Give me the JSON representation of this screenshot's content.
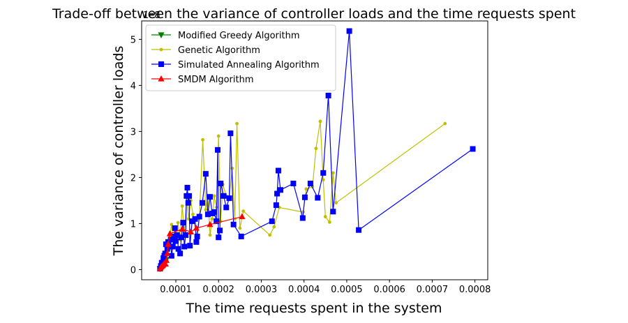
{
  "chart_data": {
    "type": "line",
    "title": "Trade-off between the variance of controller loads and the time requests spent",
    "xlabel": "The time requests spent in the system",
    "ylabel": "The variance of controller loads",
    "y_offset_label": "1e8",
    "xlim": [
      2e-05,
      0.00083
    ],
    "ylim": [
      -0.22,
      5.4
    ],
    "x_ticks": [
      0.0001,
      0.0002,
      0.0003,
      0.0004,
      0.0005,
      0.0006,
      0.0007,
      0.0008
    ],
    "x_tick_labels": [
      "0.0001",
      "0.0002",
      "0.0003",
      "0.0004",
      "0.0005",
      "0.0006",
      "0.0007",
      "0.0008"
    ],
    "y_ticks": [
      0,
      1,
      2,
      3,
      4,
      5
    ],
    "y_tick_labels": [
      "0",
      "1",
      "2",
      "3",
      "4",
      "5"
    ],
    "legend_position": "top-left",
    "series": [
      {
        "name": "Modified Greedy Algorithm",
        "color": "#008000",
        "marker": "triangle-down",
        "points": [
          [
            6.3e-05,
            0.02
          ],
          [
            6.6e-05,
            0.05
          ],
          [
            6.8e-05,
            0.08
          ],
          [
            7e-05,
            0.12
          ],
          [
            7.2e-05,
            0.15
          ],
          [
            7.5e-05,
            0.18
          ],
          [
            7.8e-05,
            0.22
          ]
        ]
      },
      {
        "name": "Genetic Algorithm",
        "color": "#bfbf00",
        "marker": "dot",
        "points": [
          [
            6.3e-05,
            0.05
          ],
          [
            6.6e-05,
            0.1
          ],
          [
            7e-05,
            0.2
          ],
          [
            7.4e-05,
            0.35
          ],
          [
            7.8e-05,
            0.5
          ],
          [
            8.2e-05,
            0.62
          ],
          [
            8.6e-05,
            0.72
          ],
          [
            9e-05,
            0.98
          ],
          [
            9.5e-05,
            0.55
          ],
          [
            0.0001,
            0.7
          ],
          [
            0.000105,
            1.02
          ],
          [
            0.00011,
            0.65
          ],
          [
            0.000115,
            1.38
          ],
          [
            0.00012,
            0.8
          ],
          [
            0.000125,
            1.6
          ],
          [
            0.00013,
            1.1
          ],
          [
            0.000135,
            1.5
          ],
          [
            0.00014,
            1.2
          ],
          [
            0.000148,
            0.75
          ],
          [
            0.000155,
            1.12
          ],
          [
            0.000163,
            2.82
          ],
          [
            0.00017,
            1.3
          ],
          [
            0.000175,
            1.6
          ],
          [
            0.00018,
            0.75
          ],
          [
            0.000185,
            1.1
          ],
          [
            0.00019,
            1.6
          ],
          [
            0.000195,
            1.35
          ],
          [
            0.0002,
            2.9
          ],
          [
            0.000205,
            1.05
          ],
          [
            0.00021,
            1.85
          ],
          [
            0.000218,
            1.6
          ],
          [
            0.000225,
            1.55
          ],
          [
            0.000232,
            2.2
          ],
          [
            0.000238,
            1.1
          ],
          [
            0.000243,
            3.17
          ],
          [
            0.00025,
            0.9
          ],
          [
            0.000258,
            1.27
          ],
          [
            0.00032,
            0.75
          ],
          [
            0.00033,
            0.93
          ],
          [
            0.000342,
            1.35
          ],
          [
            0.000398,
            1.25
          ],
          [
            0.000405,
            1.75
          ],
          [
            0.00042,
            1.8
          ],
          [
            0.000428,
            2.63
          ],
          [
            0.000438,
            3.22
          ],
          [
            0.000445,
            1.95
          ],
          [
            0.00045,
            1.15
          ],
          [
            0.00046,
            1.03
          ],
          [
            0.000468,
            2.1
          ],
          [
            0.000475,
            1.45
          ],
          [
            0.00073,
            3.17
          ]
        ]
      },
      {
        "name": "Simulated Annealing Algorithm",
        "color": "#0000ff",
        "marker": "square",
        "points": [
          [
            6.3e-05,
            0.02
          ],
          [
            6.5e-05,
            0.08
          ],
          [
            6.7e-05,
            0.15
          ],
          [
            6.9e-05,
            0.1
          ],
          [
            7.1e-05,
            0.25
          ],
          [
            7.3e-05,
            0.3
          ],
          [
            7.5e-05,
            0.35
          ],
          [
            7.7e-05,
            0.55
          ],
          [
            8e-05,
            0.45
          ],
          [
            8.2e-05,
            0.6
          ],
          [
            8.5e-05,
            0.5
          ],
          [
            8.8e-05,
            0.65
          ],
          [
            9e-05,
            0.3
          ],
          [
            9.3e-05,
            0.5
          ],
          [
            9.6e-05,
            0.72
          ],
          [
            9.8e-05,
            0.9
          ],
          [
            0.0001,
            0.62
          ],
          [
            0.000103,
            0.75
          ],
          [
            0.000106,
            0.45
          ],
          [
            0.00011,
            0.35
          ],
          [
            0.000113,
            0.7
          ],
          [
            0.000117,
            1.02
          ],
          [
            0.00012,
            0.5
          ],
          [
            0.000123,
            0.75
          ],
          [
            0.000125,
            1.6
          ],
          [
            0.000127,
            1.78
          ],
          [
            0.000129,
            1.45
          ],
          [
            0.000131,
            1.6
          ],
          [
            0.000133,
            0.52
          ],
          [
            0.000138,
            1.05
          ],
          [
            0.000145,
            1.1
          ],
          [
            0.000148,
            0.6
          ],
          [
            0.00015,
            0.72
          ],
          [
            0.000155,
            1.15
          ],
          [
            0.000162,
            1.45
          ],
          [
            0.00017,
            2.08
          ],
          [
            0.000175,
            1.2
          ],
          [
            0.00018,
            1.58
          ],
          [
            0.000185,
            1.22
          ],
          [
            0.00019,
            1.25
          ],
          [
            0.000195,
            1.05
          ],
          [
            0.000198,
            2.6
          ],
          [
            0.0002,
            0.7
          ],
          [
            0.000203,
            0.85
          ],
          [
            0.000205,
            1.87
          ],
          [
            0.000212,
            1.6
          ],
          [
            0.000218,
            1.35
          ],
          [
            0.000225,
            1.55
          ],
          [
            0.000228,
            2.96
          ],
          [
            0.000235,
            0.98
          ],
          [
            0.000253,
            0.72
          ],
          [
            0.000325,
            1.05
          ],
          [
            0.000335,
            1.4
          ],
          [
            0.000337,
            1.65
          ],
          [
            0.00034,
            2.15
          ],
          [
            0.000345,
            1.73
          ],
          [
            0.000375,
            1.87
          ],
          [
            0.000397,
            1.12
          ],
          [
            0.000402,
            1.57
          ],
          [
            0.000415,
            1.87
          ],
          [
            0.000432,
            1.56
          ],
          [
            0.000445,
            2.1
          ],
          [
            0.000457,
            3.78
          ],
          [
            0.000468,
            1.26
          ],
          [
            0.000506,
            5.18
          ],
          [
            0.000528,
            0.86
          ],
          [
            0.000795,
            2.62
          ]
        ]
      },
      {
        "name": "SMDM Algorithm",
        "color": "#ff0000",
        "marker": "triangle-up",
        "points": [
          [
            6.3e-05,
            0.02
          ],
          [
            6.4e-05,
            0.04
          ],
          [
            6.6e-05,
            0.06
          ],
          [
            6.8e-05,
            0.08
          ],
          [
            7e-05,
            0.1
          ],
          [
            7.2e-05,
            0.12
          ],
          [
            7.4e-05,
            0.14
          ],
          [
            7.6e-05,
            0.12
          ],
          [
            7.8e-05,
            0.2
          ],
          [
            8e-05,
            0.35
          ],
          [
            8.2e-05,
            0.55
          ],
          [
            8.6e-05,
            0.78
          ],
          [
            0.000115,
            0.88
          ],
          [
            0.000135,
            0.82
          ],
          [
            0.000148,
            0.9
          ],
          [
            0.00018,
            0.98
          ],
          [
            0.000255,
            1.15
          ]
        ]
      }
    ]
  }
}
